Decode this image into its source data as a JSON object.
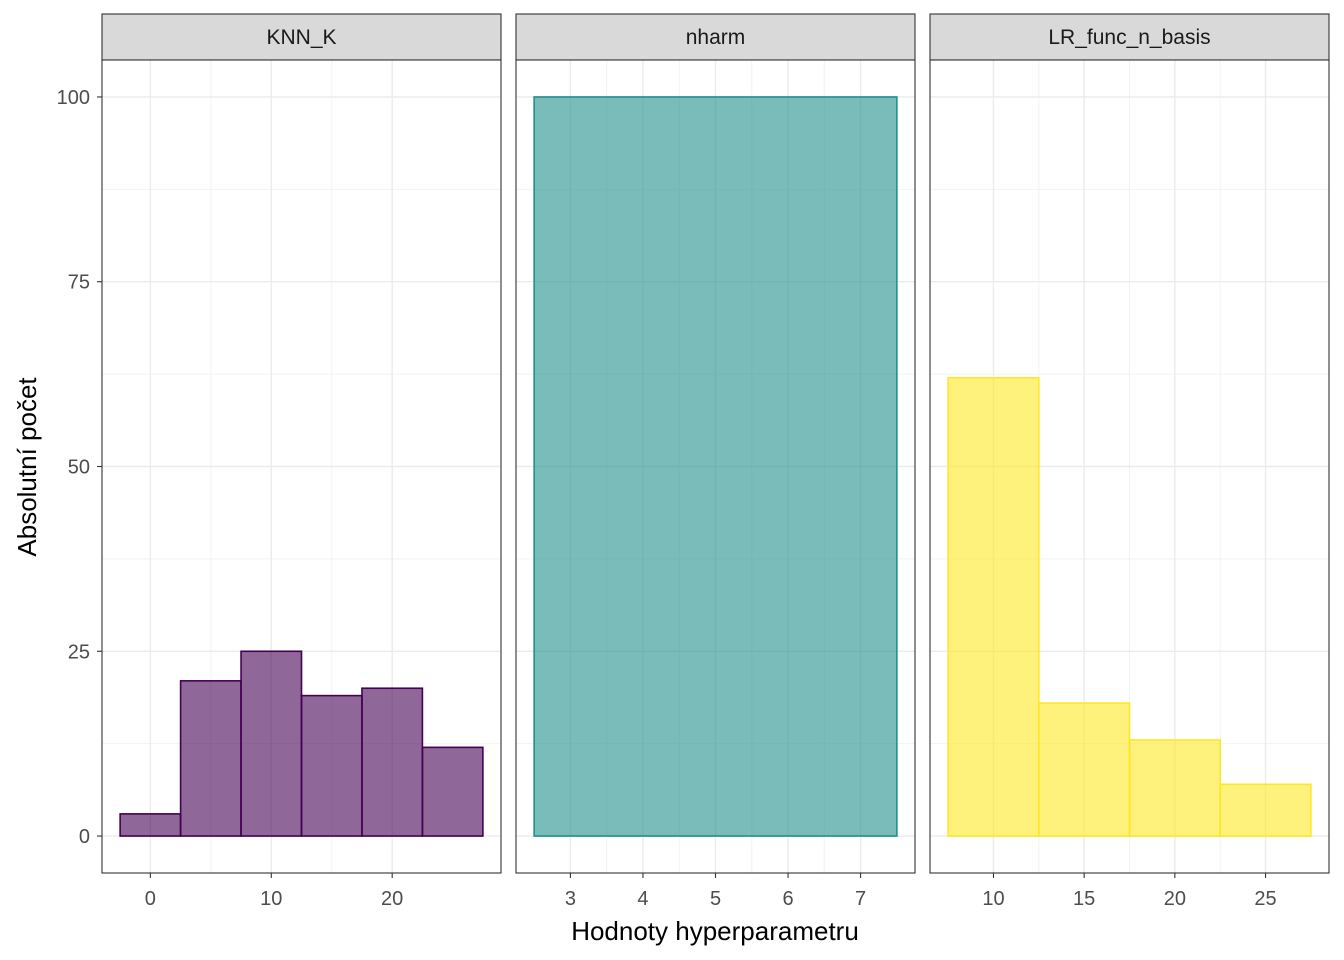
{
  "chart_data": {
    "type": "bar",
    "subtype": "faceted-histogram",
    "xlabel": "Hodnoty hyperparametru",
    "ylabel": "Absolutní počet",
    "ylim": [
      -5,
      105
    ],
    "yticks": [
      0,
      25,
      50,
      75,
      100
    ],
    "grid": true,
    "facets": [
      {
        "name": "KNN_K",
        "color": "#440154",
        "fill_opacity": 0.6,
        "xlim": [
          -4,
          29
        ],
        "xticks": [
          0,
          10,
          20
        ],
        "bins": [
          {
            "x0": -2.5,
            "x1": 2.5,
            "count": 3
          },
          {
            "x0": 2.5,
            "x1": 7.5,
            "count": 21
          },
          {
            "x0": 7.5,
            "x1": 12.5,
            "count": 25
          },
          {
            "x0": 12.5,
            "x1": 17.5,
            "count": 19
          },
          {
            "x0": 17.5,
            "x1": 22.5,
            "count": 20
          },
          {
            "x0": 22.5,
            "x1": 27.5,
            "count": 12
          }
        ]
      },
      {
        "name": "nharm",
        "color": "#21908C",
        "fill_opacity": 0.6,
        "xlim": [
          2.25,
          7.75
        ],
        "xticks": [
          3,
          4,
          5,
          6,
          7
        ],
        "bins": [
          {
            "x0": 2.5,
            "x1": 7.5,
            "count": 100
          }
        ]
      },
      {
        "name": "LR_func_n_basis",
        "color": "#FDE725",
        "fill_opacity": 0.6,
        "xlim": [
          6.5,
          28.5
        ],
        "xticks": [
          10,
          15,
          20,
          25
        ],
        "bins": [
          {
            "x0": 7.5,
            "x1": 12.5,
            "count": 62
          },
          {
            "x0": 12.5,
            "x1": 17.5,
            "count": 18
          },
          {
            "x0": 17.5,
            "x1": 22.5,
            "count": 13
          },
          {
            "x0": 22.5,
            "x1": 27.5,
            "count": 7
          }
        ]
      }
    ]
  }
}
